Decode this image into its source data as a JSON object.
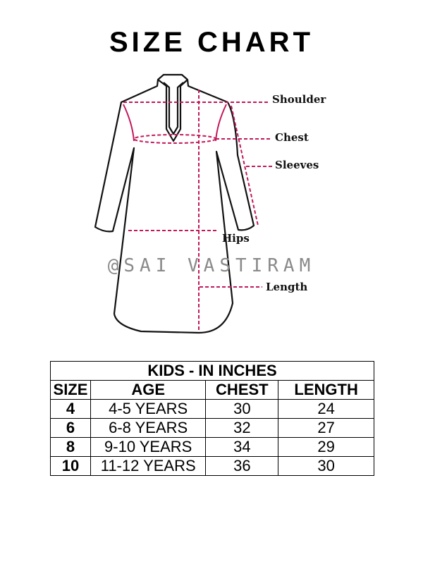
{
  "title": "SIZE CHART",
  "diagram": {
    "labels": {
      "shoulder": "Shoulder",
      "chest": "Chest",
      "sleeves": "Sleeves",
      "hips": "Hips",
      "length": "Length"
    },
    "watermark": "@SAI VASTIRAM",
    "colors": {
      "measure_line": "#c2185b",
      "outline": "#111111"
    }
  },
  "table": {
    "caption": "KIDS - IN INCHES",
    "headers": [
      "SIZE",
      "AGE",
      "CHEST",
      "LENGTH"
    ],
    "rows": [
      [
        "4",
        "4-5 YEARS",
        "30",
        "24"
      ],
      [
        "6",
        "6-8 YEARS",
        "32",
        "27"
      ],
      [
        "8",
        "9-10 YEARS",
        "34",
        "29"
      ],
      [
        "10",
        "11-12 YEARS",
        "36",
        "30"
      ]
    ]
  }
}
